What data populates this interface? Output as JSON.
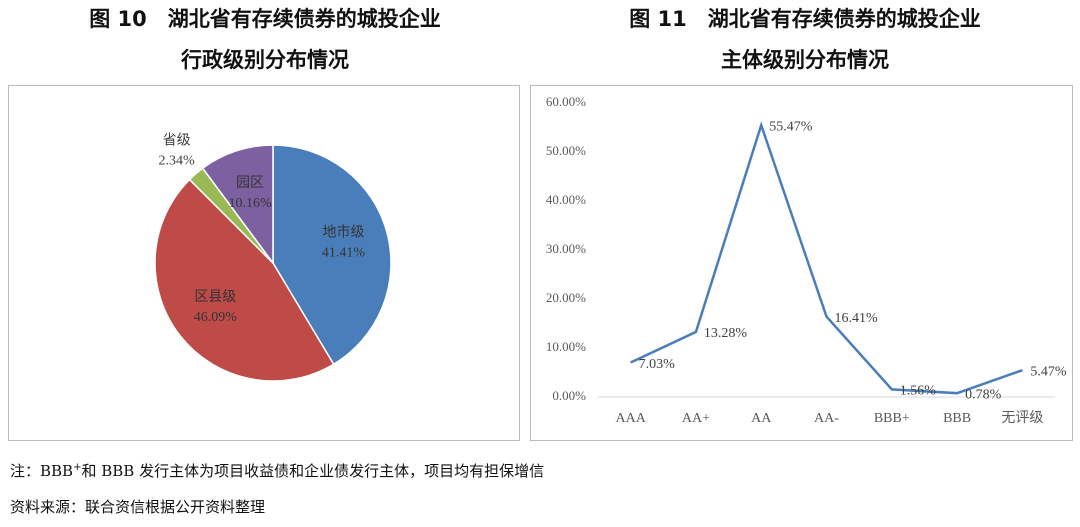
{
  "chart_data": [
    {
      "type": "pie",
      "title": "图 10　湖北省有存续债券的城投企业",
      "subtitle": "行政级别分布情况",
      "categories": [
        "地市级",
        "区县级",
        "省级",
        "园区"
      ],
      "values": [
        41.41,
        46.09,
        2.34,
        10.16
      ],
      "value_labels": [
        "41.41%",
        "46.09%",
        "2.34%",
        "10.16%"
      ],
      "colors": [
        "#4a7ebb",
        "#be4b48",
        "#98b954",
        "#7d60a0"
      ]
    },
    {
      "type": "line",
      "title": "图 11　湖北省有存续债券的城投企业",
      "subtitle": "主体级别分布情况",
      "categories": [
        "AAA",
        "AA+",
        "AA",
        "AA-",
        "BBB+",
        "BBB",
        "无评级"
      ],
      "values": [
        7.03,
        13.28,
        55.47,
        16.41,
        1.56,
        0.78,
        5.47
      ],
      "value_labels": [
        "7.03%",
        "13.28%",
        "55.47%",
        "16.41%",
        "1.56%",
        "0.78%",
        "5.47%"
      ],
      "color": "#4a7ebb",
      "grid": false,
      "ylim": [
        0,
        60
      ],
      "yticks": [
        {
          "value": 0,
          "label": "0.00%"
        },
        {
          "value": 10,
          "label": "10.00%"
        },
        {
          "value": 20,
          "label": "20.00%"
        },
        {
          "value": 30,
          "label": "30.00%"
        },
        {
          "value": 40,
          "label": "40.00%"
        },
        {
          "value": 50,
          "label": "50.00%"
        },
        {
          "value": 60,
          "label": "60.00%"
        }
      ]
    }
  ],
  "note": [
    "注：BBB",
    "+",
    "和 BBB 发行主体为项目收益债和企业债发行主体，项目均有担保增信"
  ],
  "source": "资料来源：联合资信根据公开资料整理"
}
